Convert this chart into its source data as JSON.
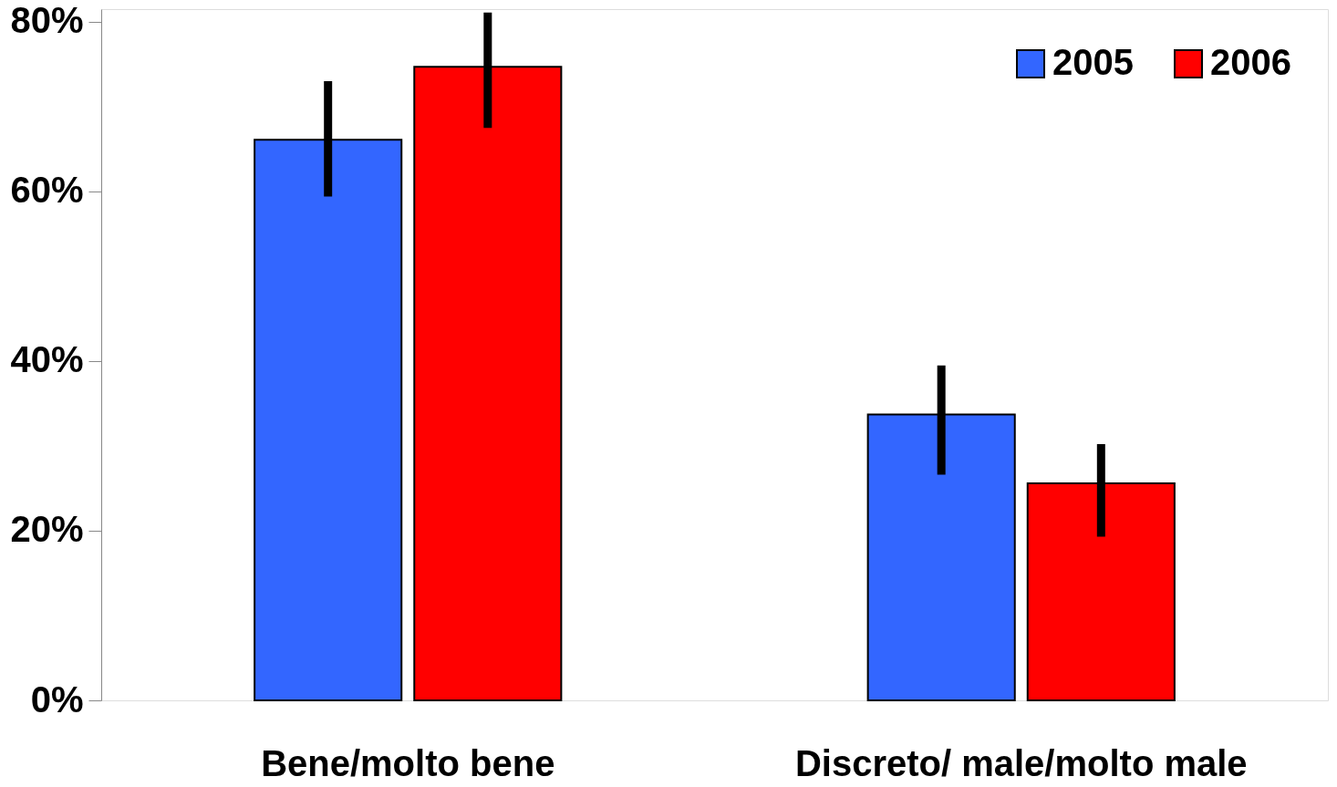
{
  "chart_data": {
    "type": "bar",
    "categories": [
      "Bene/molto bene",
      "Discreto/ male/molto male"
    ],
    "series": [
      {
        "name": "2005",
        "color": "#3366ff",
        "values": [
          66.1,
          33.7
        ],
        "errors": [
          [
            59.4,
            73.0
          ],
          [
            26.6,
            39.5
          ]
        ]
      },
      {
        "name": "2006",
        "color": "#ff0000",
        "values": [
          74.7,
          25.6
        ],
        "errors": [
          [
            67.5,
            81.1
          ],
          [
            19.3,
            30.2
          ]
        ]
      }
    ],
    "ylim": [
      0,
      81.5
    ],
    "yticks": [
      {
        "value": 0,
        "label": "0%"
      },
      {
        "value": 20,
        "label": "20%"
      },
      {
        "value": 40,
        "label": "40%"
      },
      {
        "value": 60,
        "label": "60%"
      },
      {
        "value": 80,
        "label": "80%"
      }
    ],
    "grid": false,
    "legend": "top right"
  }
}
